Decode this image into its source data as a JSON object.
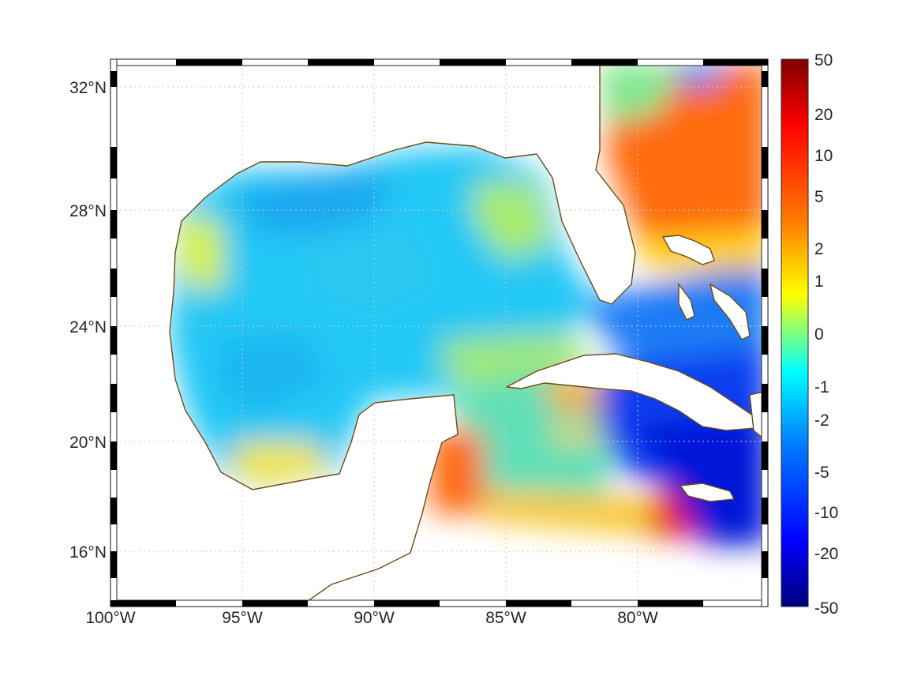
{
  "map": {
    "lat_ticks": [
      "32°N",
      "28°N",
      "24°N",
      "20°N",
      "16°N"
    ],
    "lon_ticks": [
      "100°W",
      "95°W",
      "90°W",
      "85°W",
      "80°W"
    ],
    "grid": "dotted",
    "frame": "black-and-white alternating border",
    "coast_color": "#6b4a1a",
    "land_color": "#ffffff"
  },
  "colorbar": {
    "ticks": [
      "50",
      "20",
      "10",
      "5",
      "2",
      "1",
      "0",
      "-1",
      "-2",
      "-5",
      "-10",
      "-20",
      "-50"
    ],
    "colormap": "jet",
    "colors": [
      "#7f0000",
      "#ff0000",
      "#ff7f00",
      "#ffff00",
      "#7fff7f",
      "#00ffff",
      "#007fff",
      "#0000ff",
      "#00007f"
    ]
  }
}
